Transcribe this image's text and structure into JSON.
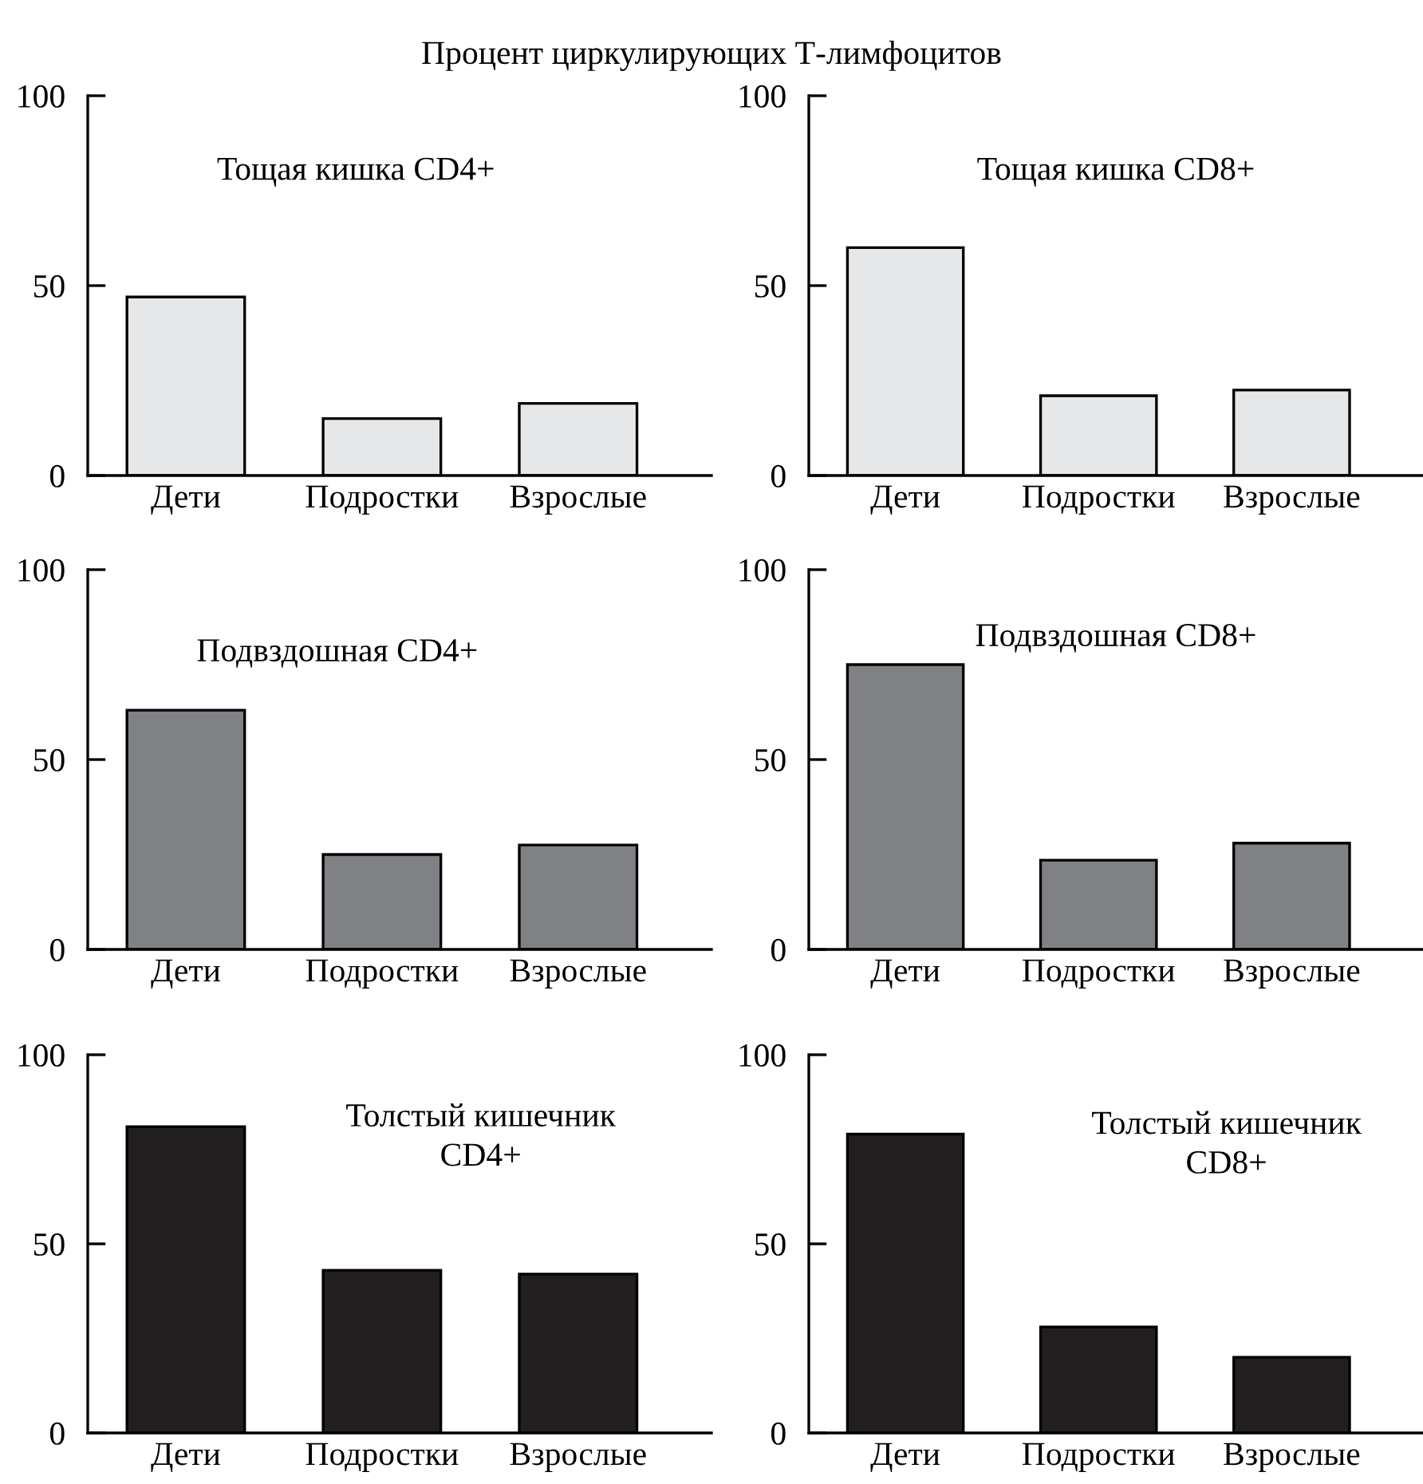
{
  "chart_data": [
    {
      "type": "bar",
      "title": "Тощая кишка CD4+",
      "annotations": [
        "Процент циркулирующих Т-лимфоцитов"
      ],
      "categories": [
        "Дети",
        "Подростки",
        "Взрослые"
      ],
      "values": [
        47,
        15,
        19
      ],
      "color": "#e6e7e8",
      "ylim": [
        0,
        100
      ],
      "yticks": [
        0,
        50,
        100
      ],
      "grid": false,
      "legend": false
    },
    {
      "type": "bar",
      "title": "Тощая кишка CD8+",
      "categories": [
        "Дети",
        "Подростки",
        "Взрослые"
      ],
      "values": [
        60,
        21,
        22.5
      ],
      "color": "#e6e7e8",
      "ylim": [
        0,
        100
      ],
      "yticks": [
        0,
        50,
        100
      ],
      "grid": false,
      "legend": false
    },
    {
      "type": "bar",
      "title": "Подвздошная CD4+",
      "categories": [
        "Дети",
        "Подростки",
        "Взрослые"
      ],
      "values": [
        63,
        25,
        27.5
      ],
      "color": "#808184",
      "ylim": [
        0,
        100
      ],
      "yticks": [
        0,
        50,
        100
      ],
      "grid": false,
      "legend": false
    },
    {
      "type": "bar",
      "title": "Подвздошная CD8+",
      "categories": [
        "Дети",
        "Подростки",
        "Взрослые"
      ],
      "values": [
        75,
        23.5,
        28
      ],
      "color": "#808184",
      "ylim": [
        0,
        100
      ],
      "yticks": [
        0,
        50,
        100
      ],
      "grid": false,
      "legend": false
    },
    {
      "type": "bar",
      "title": "Толстый кишечник\nCD4+",
      "categories": [
        "Дети",
        "Подростки",
        "Взрослые"
      ],
      "values": [
        81,
        43,
        42
      ],
      "color": "#231f20",
      "ylim": [
        0,
        100
      ],
      "yticks": [
        0,
        50,
        100
      ],
      "grid": false,
      "legend": false
    },
    {
      "type": "bar",
      "title": "Толстый кишечник\nCD8+",
      "categories": [
        "Дети",
        "Подростки",
        "Взрослые"
      ],
      "values": [
        79,
        28,
        20
      ],
      "color": "#231f20",
      "ylim": [
        0,
        100
      ],
      "yticks": [
        0,
        50,
        100
      ],
      "grid": false,
      "legend": false
    }
  ]
}
